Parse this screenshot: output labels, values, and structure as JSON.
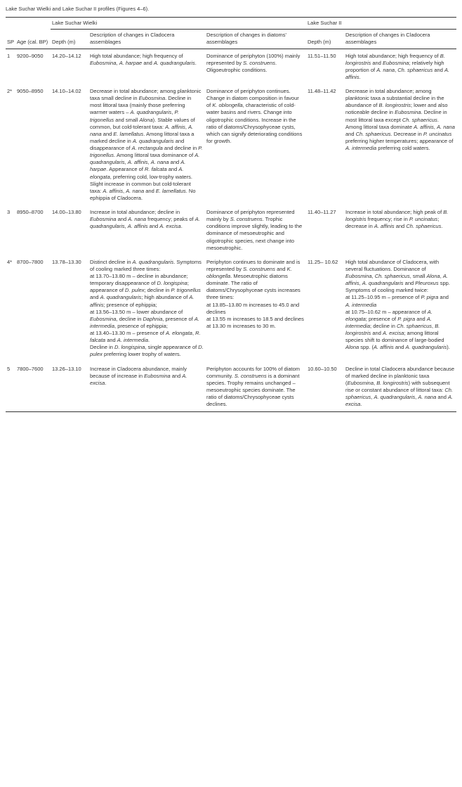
{
  "caption": "Lake Suchar Wielki and Lake Suchar II profiles (Figures 4–6).",
  "headers": {
    "sp": "SP",
    "age": "Age (cal. BP)",
    "lakeWielki": "Lake Suchar Wielki",
    "lakeII": "Lake Suchar II",
    "depth": "Depth (m)",
    "clad": "Description of changes in Cladocera assemblages",
    "diat": "Description of changes in diatoms' assemblages"
  },
  "rows": [
    {
      "sp": "1",
      "age": "9200–9050",
      "d1": "14.20–14.12",
      "c1": "High total abundance; high frequency of <i>Eubosmina</i>, <i>A. harpae</i> and <i>A. quadrangularis</i>.",
      "di1": "Dominance of periphyton (100%) mainly represented by <i>S. construens</i>. Oligoeutrophic conditions.",
      "d2": "11.51–11.50",
      "c2": "High total abundance; high frequency of <i>B. longirostris</i> and <i>Eubosmina</i>; relatively high proportion of <i>A. nana</i>, <i>Ch. sphaericus</i> and <i>A. affinis</i>."
    },
    {
      "sp": "2*",
      "age": "9050–8950",
      "d1": "14.10–14.02",
      "c1": "Decrease in total abundance; among planktonic taxa small decline in <i>Eubosmina</i>. Decline in most littoral taxa (mainly those preferring warmer waters – <i>A. quadrangularis</i>, <i>P. trigonellus</i> and small <i>Alona</i>). Stable values of common, but cold-tolerant taxa: <i>A. affinis</i>, <i>A. nana</i> and <i>E. lamellatus</i>. Among littoral taxa a marked decline in <i>A. quadrangularis</i> and disappearance of <i>A. rectangula</i> and decline in <i>P. trigonellus</i>. Among littoral taxa dominance of <i>A. quadrangularis</i>, <i>A. affinis</i>, <i>A. nana</i> and <i>A. harpae</i>. Appearance of <i>R. falcata</i> and <i>A. elongata</i>, preferring cold, low-trophy waters. Slight increase in common but cold-tolerant taxa: <i>A. affinis</i>, <i>A. nana</i> and <i>E. lamellatus</i>. No ephippia of Cladocera.",
      "di1": "Dominance of periphyton continues. Change in diatom composition in favour of <i>K. oblongella</i>, characteristic of cold-water basins and rivers. Change into oligotrophic conditions. Increase in the ratio of diatoms/Chrysophyceae cysts, which can signify deteriorating conditions for growth.",
      "d2": "11.48–11.42",
      "c2": "Decrease in total abundance; among planktonic taxa a substantial decline in the abundance of <i>B. longirostris</i>; lower and also noticeable decline in <i>Eubosmina</i>. Decline in most littoral taxa except <i>Ch. sphaericus</i>. Among littoral taxa dominate <i>A. affinis</i>, <i>A. nana</i> and <i>Ch. sphaericus</i>. Decrease in <i>P. uncinatus</i> preferring higher temperatures; appearance of <i>A. intermedia</i> preferring cold waters."
    },
    {
      "sp": "3",
      "age": "8950–8700",
      "d1": "14.00–13.80",
      "c1": "Increase in total abundance; decline in <i>Eubosmina</i> and <i>A. nana</i> frequency; peaks of <i>A. quadrangularis</i>, <i>A. affinis</i> and <i>A. excisa</i>.",
      "di1": "Dominance of periphyton represented mainly by <i>S. construens</i>. Trophic conditions improve slightly, leading to the dominance of mesoeutrophic and oligotrophic species, next change into mesoeutrophic.",
      "d2": "11.40–11.27",
      "c2": "Increase in total abundance; high peak of <i>B. longistris</i> frequency; rise in <i>P. uncinatus</i>; decrease in <i>A. affinis</i> and <i>Ch. sphaericus</i>."
    },
    {
      "sp": "4*",
      "age": "8700–7800",
      "d1": "13.78–13.30",
      "c1": "Distinct decline in <i>A. quadrangularis</i>. Symptoms of cooling marked three times:<br>at 13.70–13.80 m – decline in abundance; temporary disappearance of <i>D. longispina</i>; appearance of <i>D. pulex</i>; decline in <i>P. trigonellus</i> and <i>A. quadrangularis</i>; high abundance of <i>A. affinis</i>; presence of ephippia;<br>at 13.56–13.50 m – lower abundance of <i>Eubosmina</i>, decline in <i>Daphnia</i>, presence of <i>A. intermedia</i>, presence of ephippia;<br>at 13.40–13.30 m – presence of <i>A. elongata</i>, <i>R. falcata</i> and <i>A. intermedia</i>.<br>Decline in <i>D. longispina</i>, single appearance of <i>D. pulex</i> preferring lower trophy of waters.",
      "di1": "Periphyton continues to dominate and is represented by <i>S. construens</i> and <i>K. oblongella</i>. Mesoeutrophic diatoms dominate. The ratio of diatoms/Chrysophyceae cysts increases three times:<br>at 13.85–13.80 m increases to 45.0 and declines<br>at 13.55 m increases to 18.5 and declines<br>at 13.30 m increases to 30 m.",
      "d2": "11.25– 10.62",
      "c2": "High total abundance of Cladocera, with several fluctuations. Dominance of <i>Eubosmina</i>, <i>Ch. sphaericus</i>, small <i>Alona</i>, <i>A. affinis</i>, <i>A. quadrangularis</i> and <i>Pleuroxus</i> spp. Symptoms of cooling marked twice:<br>at 11.25–10.95 m – presence of <i>P. pigra</i> and <i>A. intermedia</i><br>at 10.75–10.62 m – appearance of <i>A. elongata</i>; presence of <i>P. pigra</i> and <i>A. intermedia</i>; decline in <i>Ch. sphaericus</i>, <i>B. longirostris</i> and <i>A. excisa</i>; among littoral species shift to dominance of large-bodied <i>Alona</i> spp. (<i>A. affinis</i> and <i>A. quadrangularis</i>)."
    },
    {
      "sp": "5",
      "age": "7800–7600",
      "d1": "13.26–13.10",
      "c1": "Increase in Cladocera abundance, mainly because of increase in <i>Eubosmina</i> and <i>A. excisa</i>.",
      "di1": "Periphyton accounts for 100% of diatom community. <i>S. construens</i> is a dominant species. Trophy remains unchanged – mesoeutrophic species dominate. The ratio of diatoms/Chrysophyceae cysts declines.",
      "d2": "10.60–10.50",
      "c2": "Decline in total Cladocera abundance because of marked decline in planktonic taxa (<i>Eubosmina</i>, <i>B. longirostris</i>) with subsequent rise or constant abundance of littoral taxa: <i>Ch. sphaericus</i>, <i>A. quadrangularis</i>, <i>A. nana</i> and <i>A. excisa</i>."
    }
  ]
}
